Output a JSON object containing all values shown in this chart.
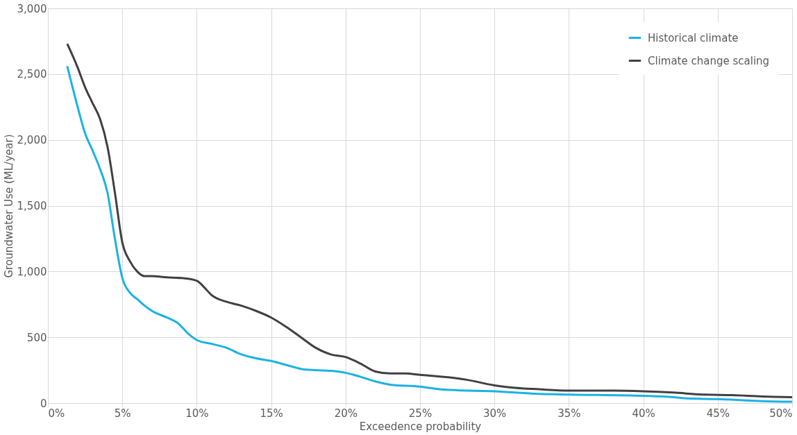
{
  "chart_data": {
    "type": "line",
    "xlabel": "Exceedence probability",
    "ylabel": "Groundwater Use (ML/year)",
    "xlim": [
      0,
      50
    ],
    "xticks": [
      {
        "value": 0,
        "label": "0%"
      },
      {
        "value": 5,
        "label": "5%"
      },
      {
        "value": 10,
        "label": "10%"
      },
      {
        "value": 15,
        "label": "15%"
      },
      {
        "value": 20,
        "label": "20%"
      },
      {
        "value": 25,
        "label": "25%"
      },
      {
        "value": 30,
        "label": "30%"
      },
      {
        "value": 35,
        "label": "35%"
      },
      {
        "value": 40,
        "label": "40%"
      },
      {
        "value": 45,
        "label": "45%"
      },
      {
        "value": 50,
        "label": "50%"
      }
    ],
    "ylim": [
      0,
      3000
    ],
    "yticks": [
      {
        "value": 0,
        "label": "0"
      },
      {
        "value": 500,
        "label": "500"
      },
      {
        "value": 1000,
        "label": "1,000"
      },
      {
        "value": 1500,
        "label": "1,500"
      },
      {
        "value": 2000,
        "label": "2,000"
      },
      {
        "value": 2500,
        "label": "2,500"
      },
      {
        "value": 3000,
        "label": "3,000"
      }
    ],
    "grid": true,
    "legend": "top right",
    "marker": "none",
    "line_style": "solid",
    "series": [
      {
        "name": "Historical climate",
        "color": "#1ab2e3",
        "x": [
          1.3,
          2,
          2.5,
          3,
          3.5,
          4,
          4.5,
          5,
          5.5,
          6,
          6.5,
          7,
          8,
          8.7,
          9.5,
          10,
          11,
          12,
          13,
          14,
          15,
          16,
          17,
          18,
          19,
          20,
          21,
          22,
          23,
          25,
          26,
          27,
          30,
          33,
          35,
          40,
          42,
          43,
          45,
          47,
          48,
          50
        ],
        "values": [
          2560,
          2250,
          2050,
          1920,
          1780,
          1600,
          1250,
          950,
          840,
          790,
          740,
          700,
          650,
          610,
          520,
          480,
          450,
          420,
          370,
          340,
          320,
          290,
          260,
          250,
          245,
          230,
          200,
          165,
          140,
          125,
          110,
          100,
          90,
          70,
          65,
          55,
          45,
          35,
          30,
          20,
          15,
          10
        ]
      },
      {
        "name": "Climate change scaling",
        "color": "#404040",
        "x": [
          1.3,
          2,
          2.5,
          3,
          3.5,
          4,
          4.5,
          5,
          5.5,
          6,
          6.5,
          7,
          8,
          9,
          10,
          10.5,
          11,
          12,
          13,
          14,
          15,
          16,
          17,
          18,
          19,
          20,
          21,
          22,
          23,
          24,
          25,
          27,
          28,
          30,
          31,
          33,
          35,
          38,
          40,
          42,
          44,
          46,
          48,
          50
        ],
        "values": [
          2730,
          2550,
          2400,
          2280,
          2160,
          1950,
          1600,
          1220,
          1080,
          1000,
          965,
          965,
          955,
          950,
          930,
          880,
          820,
          770,
          740,
          700,
          650,
          580,
          500,
          420,
          370,
          350,
          300,
          240,
          225,
          225,
          215,
          195,
          180,
          135,
          120,
          105,
          95,
          95,
          90,
          80,
          65,
          60,
          50,
          45
        ]
      }
    ]
  }
}
